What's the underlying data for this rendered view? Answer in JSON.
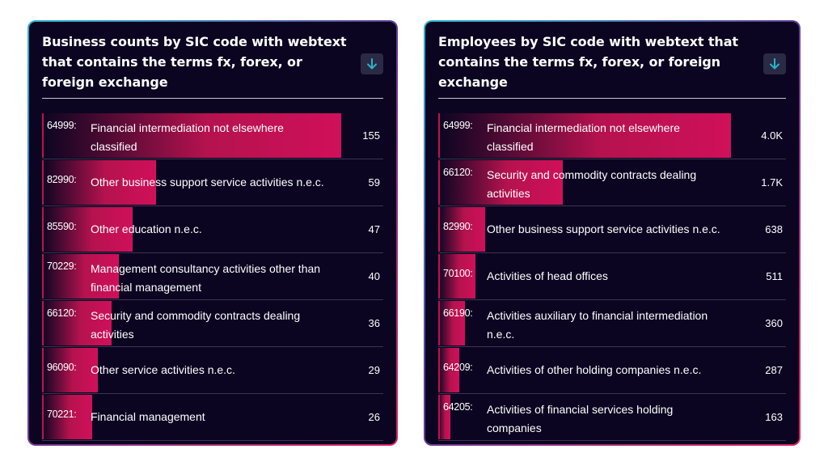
{
  "chart_data": [
    {
      "type": "bar",
      "title": "Business counts by SIC code with webtext that contains the terms fx, forex, or foreign exchange",
      "max": 155,
      "rows": [
        {
          "code": "64999:",
          "label": "Financial intermediation not elsewhere classified",
          "value": 155,
          "value_label": "155"
        },
        {
          "code": "82990:",
          "label": "Other business support service activities n.e.c.",
          "value": 59,
          "value_label": "59"
        },
        {
          "code": "85590:",
          "label": "Other education n.e.c.",
          "value": 47,
          "value_label": "47"
        },
        {
          "code": "70229:",
          "label": "Management consultancy activities other than financial management",
          "value": 40,
          "value_label": "40"
        },
        {
          "code": "66120:",
          "label": "Security and commodity contracts dealing activities",
          "value": 36,
          "value_label": "36"
        },
        {
          "code": "96090:",
          "label": "Other service activities n.e.c.",
          "value": 29,
          "value_label": "29"
        },
        {
          "code": "70221:",
          "label": "Financial management",
          "value": 26,
          "value_label": "26"
        }
      ]
    },
    {
      "type": "bar",
      "title": "Employees by SIC code with webtext that contains the terms fx, forex, or foreign exchange",
      "max": 4000,
      "rows": [
        {
          "code": "64999:",
          "label": "Financial intermediation not elsewhere classified",
          "value": 4000,
          "value_label": "4.0K"
        },
        {
          "code": "66120:",
          "label": "Security and commodity contracts dealing activities",
          "value": 1700,
          "value_label": "1.7K"
        },
        {
          "code": "82990:",
          "label": "Other business support service activities n.e.c.",
          "value": 638,
          "value_label": "638"
        },
        {
          "code": "70100:",
          "label": "Activities of head offices",
          "value": 511,
          "value_label": "511"
        },
        {
          "code": "66190:",
          "label": "Activities auxiliary to financial intermediation n.e.c.",
          "value": 360,
          "value_label": "360"
        },
        {
          "code": "64209:",
          "label": "Activities of other holding companies n.e.c.",
          "value": 287,
          "value_label": "287"
        },
        {
          "code": "64205:",
          "label": "Activities of financial services holding companies",
          "value": 163,
          "value_label": "163"
        }
      ]
    }
  ],
  "download_icon": "arrow-down-icon",
  "colors": {
    "bar": "#d0105a",
    "background": "#0b0521",
    "accent": "#2bb3c9"
  }
}
